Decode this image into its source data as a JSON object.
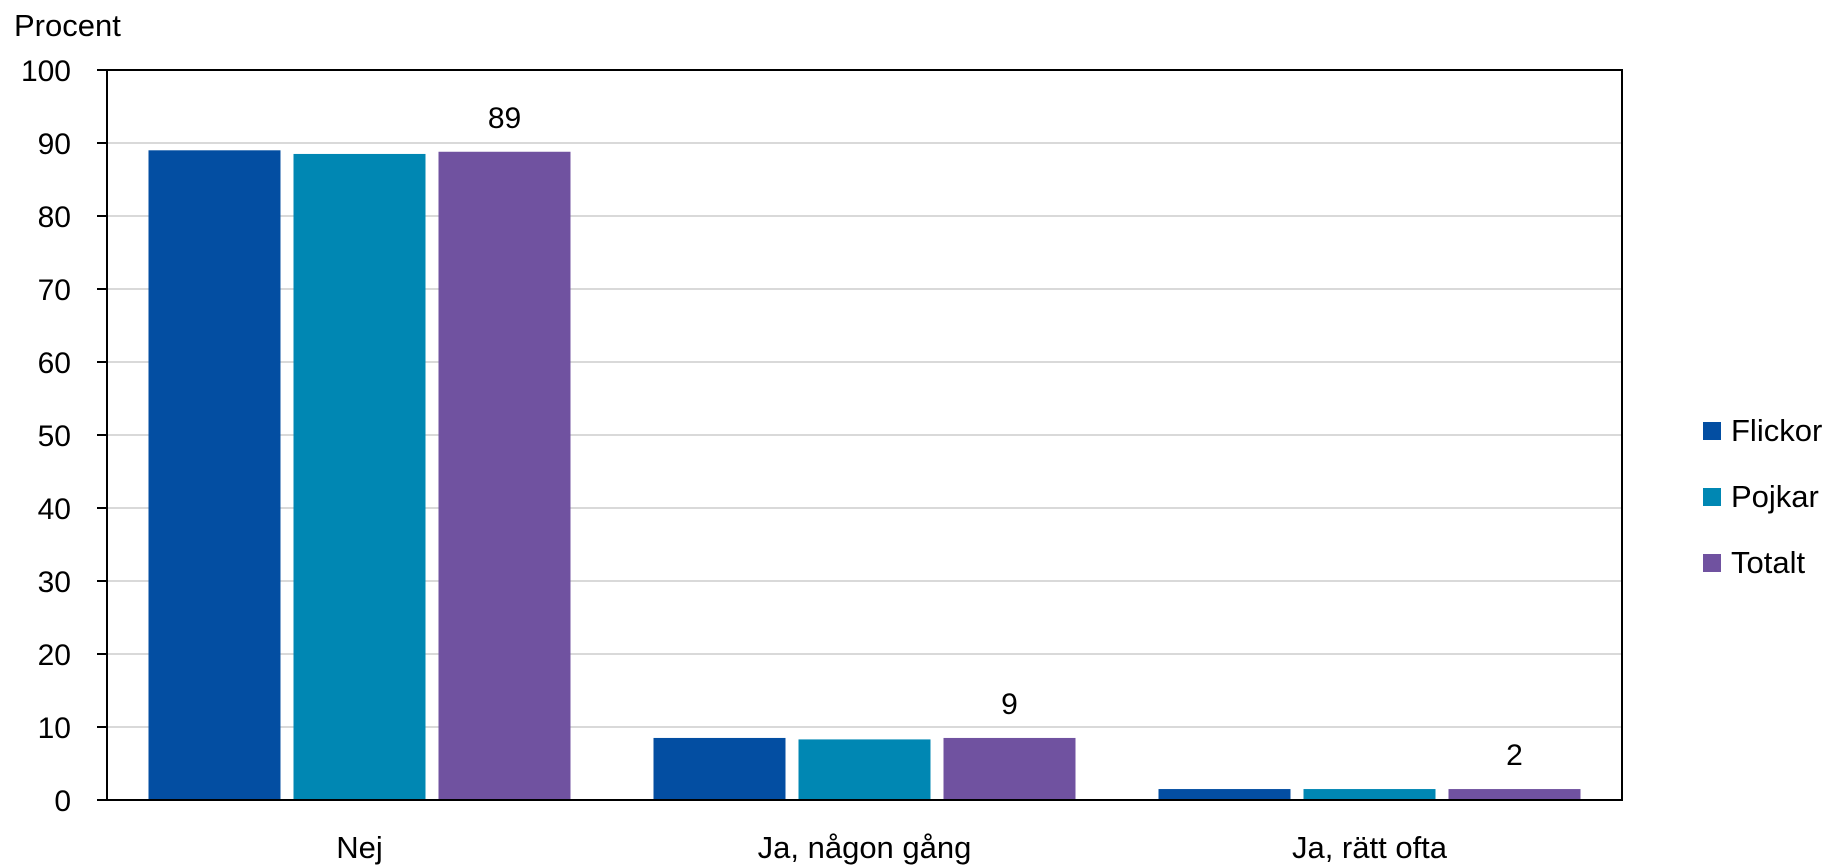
{
  "chart_data": {
    "type": "bar",
    "ylabel": "Procent",
    "ylim": [
      0,
      100
    ],
    "yticks": [
      0,
      10,
      20,
      30,
      40,
      50,
      60,
      70,
      80,
      90,
      100
    ],
    "grid": true,
    "legend_position": "right",
    "categories": [
      "Nej",
      "Ja, någon gång",
      "Ja, rätt ofta"
    ],
    "series": [
      {
        "name": "Flickor",
        "color": "#034ea2",
        "values": [
          89,
          8.5,
          1.5
        ]
      },
      {
        "name": "Pojkar",
        "color": "#0087b3",
        "values": [
          88.5,
          8.3,
          1.5
        ]
      },
      {
        "name": "Totalt",
        "color": "#7052a0",
        "values": [
          88.8,
          8.5,
          1.5
        ]
      }
    ],
    "data_labels": [
      {
        "category": "Nej",
        "series": "Totalt",
        "text": "89"
      },
      {
        "category": "Ja, någon gång",
        "series": "Totalt",
        "text": "9"
      },
      {
        "category": "Ja, rätt ofta",
        "series": "Totalt",
        "text": "2"
      }
    ]
  }
}
